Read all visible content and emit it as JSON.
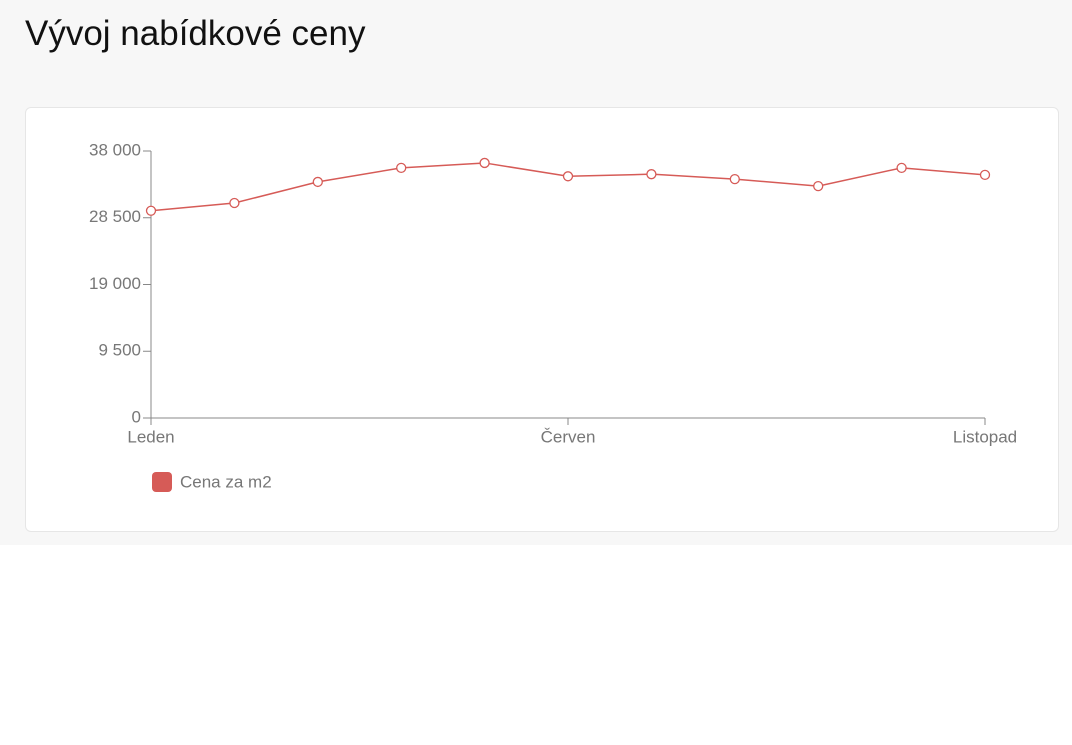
{
  "chart_data": {
    "type": "line",
    "title": "Vývoj nabídkové ceny",
    "categories": [
      "Leden",
      null,
      null,
      null,
      null,
      "Červen",
      null,
      null,
      null,
      null,
      "Listopad"
    ],
    "series": [
      {
        "name": "Cena za m2",
        "color": "#d65b57",
        "values": [
          29500,
          30600,
          33600,
          35600,
          36300,
          34400,
          34700,
          34000,
          33000,
          35600,
          34600
        ]
      }
    ],
    "ylim": [
      0,
      38000
    ],
    "yticks": [
      0,
      {
        "value": 9500,
        "label": "9 500"
      },
      {
        "value": 19000,
        "label": "19 000"
      },
      {
        "value": 28500,
        "label": "28 500"
      },
      {
        "value": 38000,
        "label": "38 000"
      }
    ],
    "legend": "bottom-left"
  }
}
